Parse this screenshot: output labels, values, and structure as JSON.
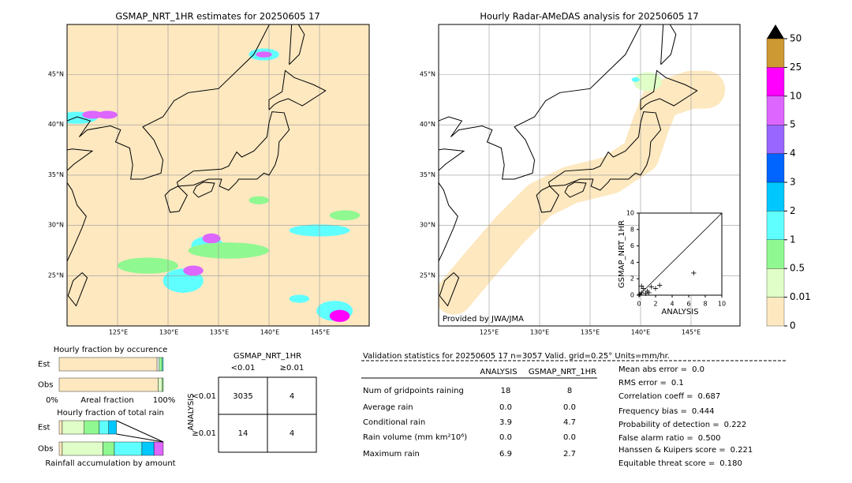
{
  "left_map": {
    "title": "GSMAP_NRT_1HR estimates for 20250605 17",
    "lat_labels": [
      "45°N",
      "40°N",
      "35°N",
      "30°N",
      "25°N"
    ],
    "lon_labels": [
      "125°E",
      "130°E",
      "135°E",
      "140°E",
      "145°E"
    ]
  },
  "right_map": {
    "title": "Hourly Radar-AMeDAS analysis for 20250605 17",
    "lat_labels": [
      "45°N",
      "40°N",
      "35°N",
      "30°N",
      "25°N"
    ],
    "lon_labels": [
      "125°E",
      "130°E",
      "135°E",
      "140°E",
      "145°E"
    ],
    "credit": "Provided by JWA/JMA"
  },
  "colorbar": {
    "levels": [
      0,
      0.01,
      0.5,
      1,
      2,
      3,
      4,
      5,
      10,
      25,
      50
    ],
    "colors": [
      "#fde8c0",
      "#e0ffc8",
      "#90f890",
      "#60ffff",
      "#00c8ff",
      "#0064ff",
      "#9966ff",
      "#dd66ff",
      "#ff00ff",
      "#cc9933"
    ]
  },
  "scatter": {
    "xlabel": "ANALYSIS",
    "ylabel": "GSMAP_NRT_1HR",
    "xlim": [
      0,
      10
    ],
    "ylim": [
      0,
      10
    ],
    "xticks": [
      0,
      2,
      4,
      6,
      8,
      10
    ],
    "yticks": [
      0,
      2,
      4,
      6,
      8,
      10
    ],
    "x": [
      0.1,
      0.3,
      0.5,
      0.8,
      1.0,
      1.2,
      1.5,
      2.0,
      2.5,
      0.3,
      6.6
    ],
    "y": [
      0.1,
      0.3,
      0.8,
      0.2,
      0.5,
      0.3,
      1.0,
      0.8,
      1.2,
      1.1,
      2.7
    ]
  },
  "occurrence": {
    "title": "Hourly fraction by occurence",
    "est_label": "Est",
    "obs_label": "Obs",
    "xtick_min": "0%",
    "xlabel": "Areal fraction",
    "xtick_max": "100%",
    "est": {
      "values": [
        94,
        2,
        3,
        1
      ],
      "colors": [
        "#fde8c0",
        "#ffffff",
        "#90f890",
        "#60ffff"
      ]
    },
    "obs": {
      "values": [
        95,
        4,
        1
      ],
      "colors": [
        "#fde8c0",
        "#e0ffc8",
        "#90f890"
      ]
    }
  },
  "total_rain": {
    "title": "Hourly fraction of total rain",
    "est_label": "Est",
    "obs_label": "Obs",
    "xlabel": "Rainfall accumulation by amount",
    "est": {
      "values": [
        3,
        21,
        14.5,
        9,
        7.5
      ],
      "colors": [
        "#fde8c0",
        "#e0ffc8",
        "#90f890",
        "#60ffff",
        "#00c8ff"
      ]
    },
    "obs": {
      "values": [
        3,
        39,
        11,
        26.5,
        11.5,
        9
      ],
      "colors": [
        "#fde8c0",
        "#e0ffc8",
        "#90f890",
        "#60ffff",
        "#00c8ff",
        "#dd66ff"
      ]
    }
  },
  "contingency": {
    "col_title": "GSMAP_NRT_1HR",
    "col_labels": [
      "<0.01",
      "≥0.01"
    ],
    "row_title": "ANALYSIS",
    "row_labels": [
      "<0.01",
      "≥0.01"
    ],
    "cells": [
      [
        "3035",
        "4"
      ],
      [
        "14",
        "4"
      ]
    ]
  },
  "stats": {
    "title": "Validation statistics for 20250605 17  n=3057 Valid. grid=0.25° Units=mm/hr.",
    "columns": [
      "ANALYSIS",
      "GSMAP_NRT_1HR"
    ],
    "rows": [
      {
        "label": "Num of gridpoints raining",
        "analysis": "18",
        "gsmap": "8"
      },
      {
        "label": "Average rain",
        "analysis": "0.0",
        "gsmap": "0.0"
      },
      {
        "label": "Conditional rain",
        "analysis": "3.9",
        "gsmap": "4.7"
      },
      {
        "label": "Rain volume (mm km²10⁶)",
        "analysis": "0.0",
        "gsmap": "0.0"
      },
      {
        "label": "Maximum rain",
        "analysis": "6.9",
        "gsmap": "2.7"
      }
    ],
    "scores": [
      {
        "label": "Mean abs error =",
        "value": "0.0"
      },
      {
        "label": "RMS error =",
        "value": "0.1"
      },
      {
        "label": "Correlation coeff =",
        "value": "0.687"
      },
      {
        "label": "Frequency bias =",
        "value": "0.444"
      },
      {
        "label": "Probability of detection =",
        "value": "0.222"
      },
      {
        "label": "False alarm ratio =",
        "value": "0.500"
      },
      {
        "label": "Hanssen & Kuipers score =",
        "value": "0.221"
      },
      {
        "label": "Equitable threat score =",
        "value": "0.180"
      }
    ]
  }
}
